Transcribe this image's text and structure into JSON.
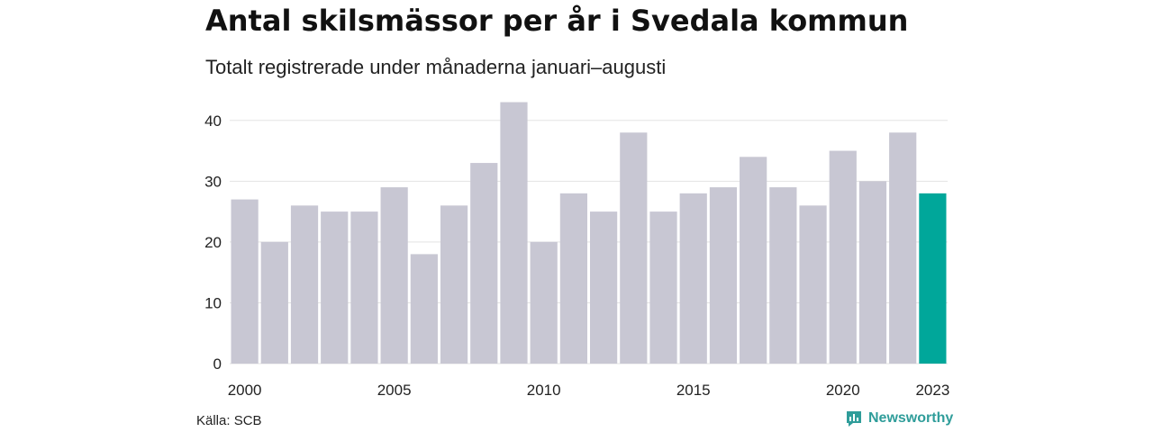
{
  "title": "Antal skilsmässor per år i Svedala kommun",
  "subtitle": "Totalt registrerade under månaderna januari–augusti",
  "source": "Källa: SCB",
  "brand": {
    "name": "Newsworthy",
    "icon": "newsworthy-logo-icon",
    "color": "#2f9d9a"
  },
  "chart_data": {
    "type": "bar",
    "categories": [
      "2000",
      "2001",
      "2002",
      "2003",
      "2004",
      "2005",
      "2006",
      "2007",
      "2008",
      "2009",
      "2010",
      "2011",
      "2012",
      "2013",
      "2014",
      "2015",
      "2016",
      "2017",
      "2018",
      "2019",
      "2020",
      "2021",
      "2022",
      "2023"
    ],
    "values": [
      27,
      20,
      26,
      25,
      25,
      29,
      18,
      26,
      33,
      43,
      20,
      28,
      25,
      38,
      25,
      28,
      29,
      34,
      29,
      26,
      35,
      30,
      38,
      28
    ],
    "x_tick_labels": [
      "2000",
      "2005",
      "2010",
      "2015",
      "2020",
      "2023"
    ],
    "y_ticks": [
      0,
      10,
      20,
      30,
      40
    ],
    "ylim": [
      0,
      45
    ],
    "grid": true,
    "colors": {
      "default": "#c8c7d3",
      "highlight": "#00a79a"
    },
    "highlight_category": "2023"
  }
}
